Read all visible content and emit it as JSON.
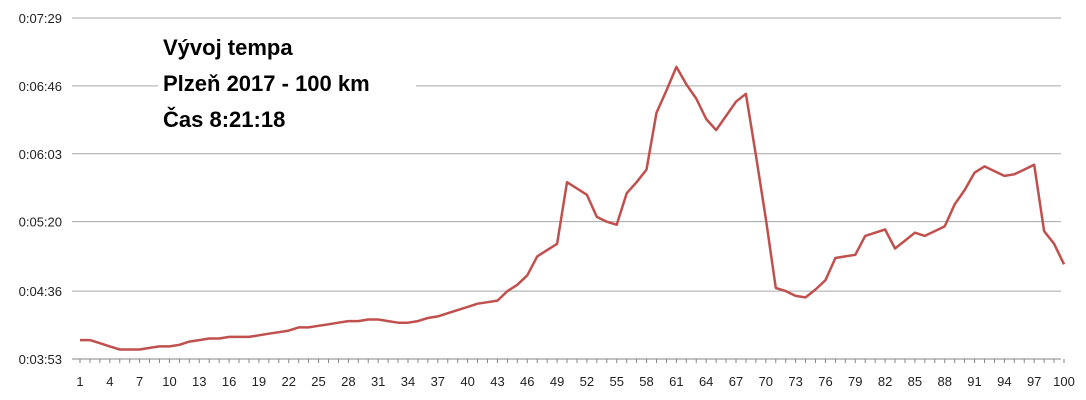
{
  "chart_data": {
    "type": "line",
    "title_lines": [
      "Vývoj tempa",
      "Plzeň 2017 - 100 km",
      "Čas 8:21:18"
    ],
    "xlabel": "",
    "ylabel": "",
    "xlim": [
      1,
      100
    ],
    "ylim_seconds": [
      233,
      449
    ],
    "y_ticks": [
      {
        "label": "0:03:53",
        "seconds": 233
      },
      {
        "label": "0:04:36",
        "seconds": 276
      },
      {
        "label": "0:05:20",
        "seconds": 320
      },
      {
        "label": "0:06:03",
        "seconds": 363
      },
      {
        "label": "0:06:46",
        "seconds": 406
      },
      {
        "label": "0:07:29",
        "seconds": 449
      }
    ],
    "x_ticks": [
      "1",
      "4",
      "7",
      "10",
      "13",
      "16",
      "19",
      "22",
      "25",
      "28",
      "31",
      "34",
      "37",
      "40",
      "43",
      "46",
      "49",
      "52",
      "55",
      "58",
      "61",
      "64",
      "67",
      "70",
      "73",
      "76",
      "79",
      "82",
      "85",
      "88",
      "91",
      "94",
      "97",
      "100"
    ],
    "grid": "horizontal",
    "legend": "none",
    "series": [
      {
        "color": "#C0504D",
        "points": [
          [
            1,
            245
          ],
          [
            2,
            245
          ],
          [
            3,
            243
          ],
          [
            4,
            241
          ],
          [
            5,
            239
          ],
          [
            6,
            239
          ],
          [
            7,
            239
          ],
          [
            8,
            240
          ],
          [
            9,
            241
          ],
          [
            10,
            241
          ],
          [
            11,
            242
          ],
          [
            12,
            244
          ],
          [
            13,
            245
          ],
          [
            14,
            246
          ],
          [
            15,
            246
          ],
          [
            16,
            247
          ],
          [
            17,
            247
          ],
          [
            18,
            247
          ],
          [
            19,
            248
          ],
          [
            20,
            249
          ],
          [
            21,
            250
          ],
          [
            22,
            251
          ],
          [
            23,
            253
          ],
          [
            24,
            253
          ],
          [
            25,
            254
          ],
          [
            26,
            255
          ],
          [
            27,
            256
          ],
          [
            28,
            257
          ],
          [
            29,
            257
          ],
          [
            30,
            258
          ],
          [
            31,
            258
          ],
          [
            32,
            257
          ],
          [
            33,
            256
          ],
          [
            34,
            256
          ],
          [
            35,
            257
          ],
          [
            36,
            259
          ],
          [
            37,
            260
          ],
          [
            38,
            262
          ],
          [
            39,
            264
          ],
          [
            40,
            266
          ],
          [
            41,
            268
          ],
          [
            42,
            269
          ],
          [
            43,
            270
          ],
          [
            44,
            276
          ],
          [
            45,
            280
          ],
          [
            46,
            286
          ],
          [
            47,
            298
          ],
          [
            48,
            302
          ],
          [
            49,
            306
          ],
          [
            50,
            345
          ],
          [
            51,
            341
          ],
          [
            52,
            337
          ],
          [
            53,
            323
          ],
          [
            54,
            320
          ],
          [
            55,
            318
          ],
          [
            56,
            338
          ],
          [
            57,
            345
          ],
          [
            58,
            353
          ],
          [
            59,
            389
          ],
          [
            60,
            403
          ],
          [
            61,
            418
          ],
          [
            62,
            407
          ],
          [
            63,
            398
          ],
          [
            64,
            385
          ],
          [
            65,
            378
          ],
          [
            66,
            387
          ],
          [
            67,
            396
          ],
          [
            68,
            401
          ],
          [
            69,
            362
          ],
          [
            70,
            322
          ],
          [
            71,
            278
          ],
          [
            72,
            276
          ],
          [
            73,
            273
          ],
          [
            74,
            272
          ],
          [
            75,
            277
          ],
          [
            76,
            283
          ],
          [
            77,
            297
          ],
          [
            78,
            298
          ],
          [
            79,
            299
          ],
          [
            80,
            311
          ],
          [
            81,
            313
          ],
          [
            82,
            315
          ],
          [
            83,
            303
          ],
          [
            84,
            308
          ],
          [
            85,
            313
          ],
          [
            86,
            311
          ],
          [
            87,
            314
          ],
          [
            88,
            317
          ],
          [
            89,
            331
          ],
          [
            90,
            340
          ],
          [
            91,
            351
          ],
          [
            92,
            355
          ],
          [
            93,
            352
          ],
          [
            94,
            349
          ],
          [
            95,
            350
          ],
          [
            96,
            353
          ],
          [
            97,
            356
          ],
          [
            98,
            314
          ],
          [
            99,
            306
          ],
          [
            100,
            293
          ]
        ]
      }
    ]
  }
}
